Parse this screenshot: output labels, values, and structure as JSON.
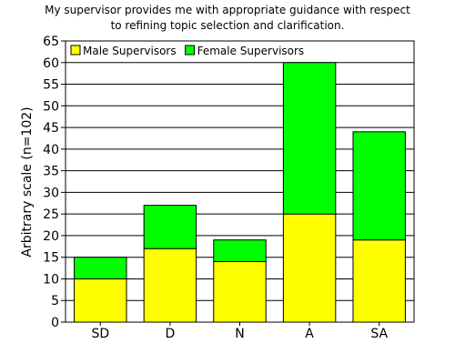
{
  "chart_data": {
    "type": "bar",
    "stacked": true,
    "title": "My supervisor provides me with appropriate guidance with respect to refining topic selection and clarification.",
    "title_lines": [
      "My supervisor provides me with appropriate guidance with respect",
      "to refining topic selection and clarification."
    ],
    "xlabel": "",
    "ylabel": "Arbitrary scale (n=102)",
    "categories": [
      "SD",
      "D",
      "N",
      "A",
      "SA"
    ],
    "series": [
      {
        "name": "Male Supervisors",
        "color": "#ffff00",
        "values": [
          10,
          17,
          14,
          25,
          19
        ]
      },
      {
        "name": "Female Supervisors",
        "color": "#00ff00",
        "values": [
          5,
          10,
          5,
          35,
          25
        ]
      }
    ],
    "ylim": [
      0,
      65
    ],
    "yticks": [
      0,
      5,
      10,
      15,
      20,
      25,
      30,
      35,
      40,
      45,
      50,
      55,
      60,
      65
    ],
    "grid": "horizontal",
    "legend_position": "top-left"
  }
}
